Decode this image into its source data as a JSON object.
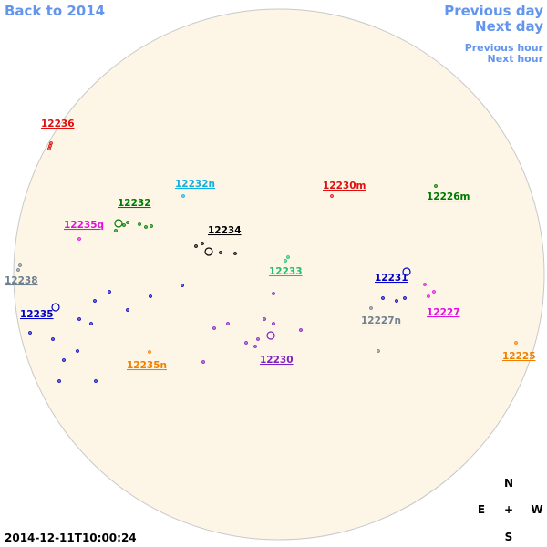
{
  "nav": {
    "back": "Back to 2014",
    "previous_day": "Previous day",
    "next_day": "Next day",
    "previous_hour": "Previous hour",
    "next_hour": "Next hour"
  },
  "regions": [
    {
      "label": "12236",
      "color": "#e01010"
    },
    {
      "label": "12232n",
      "color": "#10b0e0"
    },
    {
      "label": "12230m",
      "color": "#e01010"
    },
    {
      "label": "12226m",
      "color": "#007a00"
    },
    {
      "label": "12232",
      "color": "#007a00"
    },
    {
      "label": "12235q",
      "color": "#e010e0"
    },
    {
      "label": "12234",
      "color": "#000000"
    },
    {
      "label": "12233",
      "color": "#20c070"
    },
    {
      "label": "12231",
      "color": "#0000c8"
    },
    {
      "label": "12238",
      "color": "#708090"
    },
    {
      "label": "12235",
      "color": "#0000c8"
    },
    {
      "label": "12227n",
      "color": "#708090"
    },
    {
      "label": "12227",
      "color": "#e010e0"
    },
    {
      "label": "12230",
      "color": "#8020c0"
    },
    {
      "label": "12235n",
      "color": "#f08000"
    },
    {
      "label": "12225",
      "color": "#f08000"
    }
  ],
  "compass": {
    "north": "N",
    "east": "E",
    "center": "+",
    "west": "W",
    "south": "S"
  },
  "timestamp": "2014-12-11T10:00:24"
}
